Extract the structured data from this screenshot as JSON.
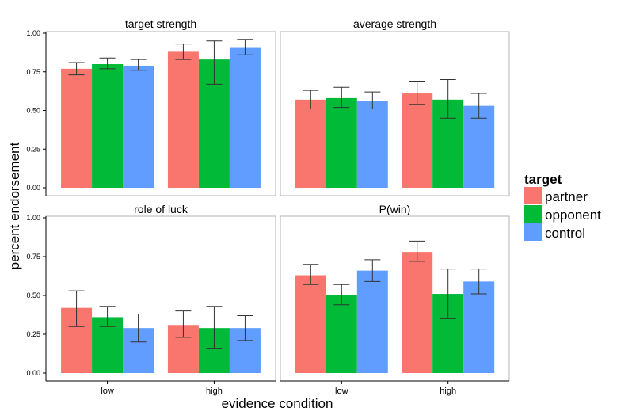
{
  "figure": {
    "ylabel": "percent endorsement",
    "xlabel": "evidence condition",
    "legend": {
      "title": "target",
      "position": "right",
      "items": [
        {
          "label": "partner",
          "color": "#F8766D"
        },
        {
          "label": "opponent",
          "color": "#00BA38"
        },
        {
          "label": "control",
          "color": "#619CFF"
        }
      ]
    }
  },
  "chart_data": [
    {
      "type": "bar",
      "title": "target strength",
      "categories": [
        "low",
        "high"
      ],
      "ylim": [
        0,
        1
      ],
      "yticks": [
        "0.00",
        "0.25",
        "0.50",
        "0.75",
        "1.00"
      ],
      "grid": false,
      "series": [
        {
          "name": "partner",
          "values": [
            0.77,
            0.88
          ],
          "err_low": [
            0.73,
            0.83
          ],
          "err_high": [
            0.81,
            0.93
          ]
        },
        {
          "name": "opponent",
          "values": [
            0.8,
            0.83
          ],
          "err_low": [
            0.77,
            0.67
          ],
          "err_high": [
            0.84,
            0.95
          ]
        },
        {
          "name": "control",
          "values": [
            0.79,
            0.91
          ],
          "err_low": [
            0.76,
            0.86
          ],
          "err_high": [
            0.83,
            0.96
          ]
        }
      ]
    },
    {
      "type": "bar",
      "title": "average strength",
      "categories": [
        "low",
        "high"
      ],
      "ylim": [
        0,
        1
      ],
      "yticks": [
        "0.00",
        "0.25",
        "0.50",
        "0.75",
        "1.00"
      ],
      "grid": false,
      "series": [
        {
          "name": "partner",
          "values": [
            0.57,
            0.61
          ],
          "err_low": [
            0.51,
            0.54
          ],
          "err_high": [
            0.63,
            0.69
          ]
        },
        {
          "name": "opponent",
          "values": [
            0.58,
            0.57
          ],
          "err_low": [
            0.52,
            0.45
          ],
          "err_high": [
            0.65,
            0.7
          ]
        },
        {
          "name": "control",
          "values": [
            0.56,
            0.53
          ],
          "err_low": [
            0.51,
            0.45
          ],
          "err_high": [
            0.62,
            0.61
          ]
        }
      ]
    },
    {
      "type": "bar",
      "title": "role of luck",
      "categories": [
        "low",
        "high"
      ],
      "ylim": [
        0,
        1
      ],
      "yticks": [
        "0.00",
        "0.25",
        "0.50",
        "0.75",
        "1.00"
      ],
      "grid": false,
      "series": [
        {
          "name": "partner",
          "values": [
            0.42,
            0.31
          ],
          "err_low": [
            0.3,
            0.23
          ],
          "err_high": [
            0.53,
            0.4
          ]
        },
        {
          "name": "opponent",
          "values": [
            0.36,
            0.29
          ],
          "err_low": [
            0.3,
            0.16
          ],
          "err_high": [
            0.43,
            0.43
          ]
        },
        {
          "name": "control",
          "values": [
            0.29,
            0.29
          ],
          "err_low": [
            0.2,
            0.21
          ],
          "err_high": [
            0.38,
            0.37
          ]
        }
      ]
    },
    {
      "type": "bar",
      "title": "P(win)",
      "categories": [
        "low",
        "high"
      ],
      "ylim": [
        0,
        1
      ],
      "yticks": [
        "0.00",
        "0.25",
        "0.50",
        "0.75",
        "1.00"
      ],
      "grid": false,
      "series": [
        {
          "name": "partner",
          "values": [
            0.63,
            0.78
          ],
          "err_low": [
            0.57,
            0.72
          ],
          "err_high": [
            0.7,
            0.85
          ]
        },
        {
          "name": "opponent",
          "values": [
            0.5,
            0.51
          ],
          "err_low": [
            0.44,
            0.35
          ],
          "err_high": [
            0.57,
            0.67
          ]
        },
        {
          "name": "control",
          "values": [
            0.66,
            0.59
          ],
          "err_low": [
            0.59,
            0.51
          ],
          "err_high": [
            0.73,
            0.67
          ]
        }
      ]
    }
  ]
}
